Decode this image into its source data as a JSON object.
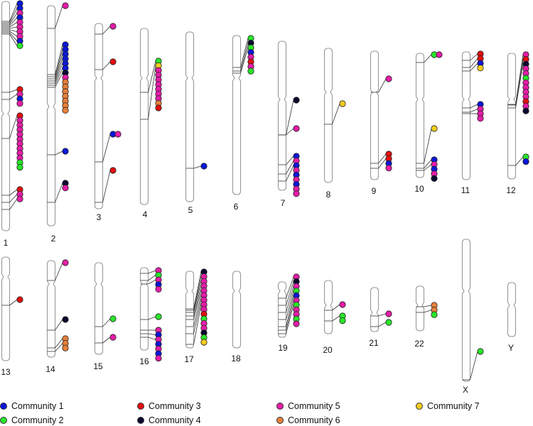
{
  "figure": {
    "type": "chromosome-ideogram"
  },
  "communities": [
    {
      "id": 1,
      "label": "Community 1",
      "color": "#0a18d8"
    },
    {
      "id": 2,
      "label": "Community 2",
      "color": "#29e629"
    },
    {
      "id": 3,
      "label": "Community 3",
      "color": "#e30f0f"
    },
    {
      "id": 4,
      "label": "Community 4",
      "color": "#0a0a2e"
    },
    {
      "id": 5,
      "label": "Community 5",
      "color": "#e61ca8"
    },
    {
      "id": 6,
      "label": "Community 6",
      "color": "#e6803a"
    },
    {
      "id": 7,
      "label": "Community 7",
      "color": "#f2cc1e"
    }
  ],
  "chromosomes": [
    {
      "label": "1",
      "markers": [
        1,
        1,
        5,
        1,
        5,
        5,
        5,
        5,
        1,
        2,
        3,
        5,
        1,
        5,
        3,
        5,
        5,
        5,
        5,
        5,
        5,
        5,
        5,
        5,
        2,
        2,
        3,
        5,
        5
      ]
    },
    {
      "label": "2",
      "markers": [
        5,
        1,
        1,
        1,
        1,
        1,
        1,
        4,
        5,
        6,
        6,
        6,
        6,
        6,
        6,
        6,
        1,
        4,
        5
      ]
    },
    {
      "label": "3",
      "markers": [
        5,
        3,
        1,
        5,
        3
      ]
    },
    {
      "label": "4",
      "markers": [
        2,
        7,
        5,
        5,
        5,
        5,
        5,
        5,
        5,
        6,
        3
      ]
    },
    {
      "label": "5",
      "markers": [
        1
      ]
    },
    {
      "label": "6",
      "markers": [
        2,
        4,
        2,
        1,
        5,
        3,
        5,
        2
      ]
    },
    {
      "label": "7",
      "markers": [
        4,
        5,
        1,
        5,
        1,
        5,
        1,
        5,
        1,
        5,
        5
      ]
    },
    {
      "label": "8",
      "markers": [
        7
      ]
    },
    {
      "label": "9",
      "markers": [
        5,
        3,
        3,
        1,
        5
      ]
    },
    {
      "label": "10",
      "markers": [
        2,
        5,
        7,
        1,
        5,
        1,
        5,
        4
      ]
    },
    {
      "label": "11",
      "markers": [
        3,
        3,
        1,
        7,
        1,
        5,
        5,
        5
      ]
    },
    {
      "label": "12",
      "markers": [
        5,
        3,
        4,
        5,
        5,
        2,
        5,
        5,
        5,
        5,
        3,
        5,
        4,
        2,
        1,
        5
      ]
    },
    {
      "label": "13",
      "markers": [
        3
      ]
    },
    {
      "label": "14",
      "markers": [
        5,
        4,
        6,
        6,
        6
      ]
    },
    {
      "label": "15",
      "markers": [
        2,
        5
      ]
    },
    {
      "label": "16",
      "markers": [
        5,
        2,
        5,
        1,
        5,
        2,
        5,
        1,
        5,
        1,
        5,
        1,
        5
      ]
    },
    {
      "label": "17",
      "markers": [
        4,
        5,
        5,
        5,
        5,
        5,
        5,
        5,
        5,
        3,
        2,
        5,
        5,
        4,
        2,
        7
      ]
    },
    {
      "label": "18",
      "markers": []
    },
    {
      "label": "19",
      "markers": [
        5,
        4,
        5,
        2,
        1,
        5,
        2,
        5,
        5,
        2,
        5
      ]
    },
    {
      "label": "20",
      "markers": [
        5,
        2,
        2
      ]
    },
    {
      "label": "21",
      "markers": [
        5,
        2
      ]
    },
    {
      "label": "22",
      "markers": [
        6,
        6,
        2
      ]
    },
    {
      "label": "X",
      "markers": [
        2
      ]
    },
    {
      "label": "Y",
      "markers": []
    }
  ]
}
